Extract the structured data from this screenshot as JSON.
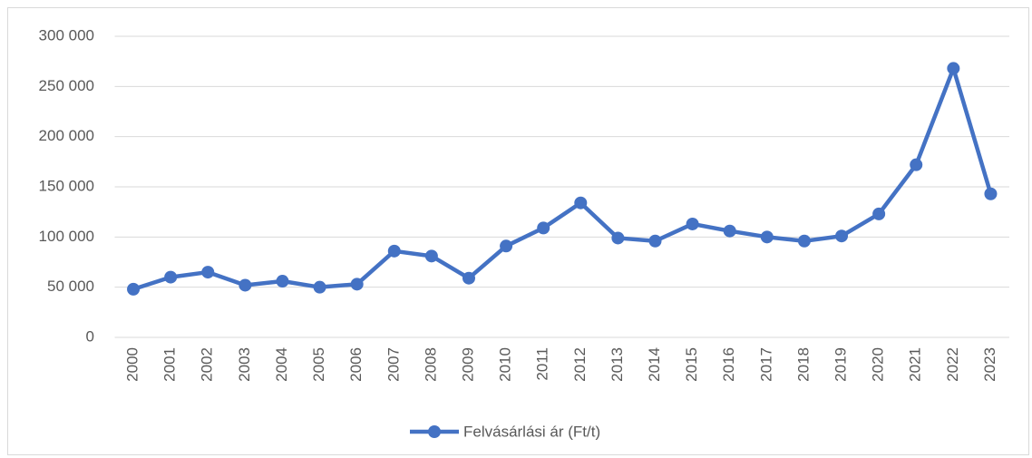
{
  "chart_data": {
    "type": "line",
    "categories": [
      "2000",
      "2001",
      "2002",
      "2003",
      "2004",
      "2005",
      "2006",
      "2007",
      "2008",
      "2009",
      "2010",
      "2011",
      "2012",
      "2013",
      "2014",
      "2015",
      "2016",
      "2017",
      "2018",
      "2019",
      "2020",
      "2021",
      "2022",
      "2023"
    ],
    "series": [
      {
        "name": "Felvásárlási ár (Ft/t)",
        "color": "#4472c4",
        "values": [
          48000,
          60000,
          65000,
          52000,
          56000,
          50000,
          53000,
          86000,
          81000,
          59000,
          91000,
          109000,
          134000,
          99000,
          96000,
          113000,
          106000,
          100000,
          96000,
          101000,
          123000,
          172000,
          268000,
          143000
        ]
      }
    ],
    "ylim": [
      0,
      300000
    ],
    "yticks": [
      0,
      {
        "value": 50000,
        "label": "50 000"
      },
      {
        "value": 100000,
        "label": "100 000"
      },
      {
        "value": 150000,
        "label": "150 000"
      },
      {
        "value": 200000,
        "label": "200 000"
      },
      {
        "value": 250000,
        "label": "250 000"
      },
      {
        "value": 300000,
        "label": "300 000"
      }
    ],
    "grid": true,
    "legend": "bottom"
  }
}
